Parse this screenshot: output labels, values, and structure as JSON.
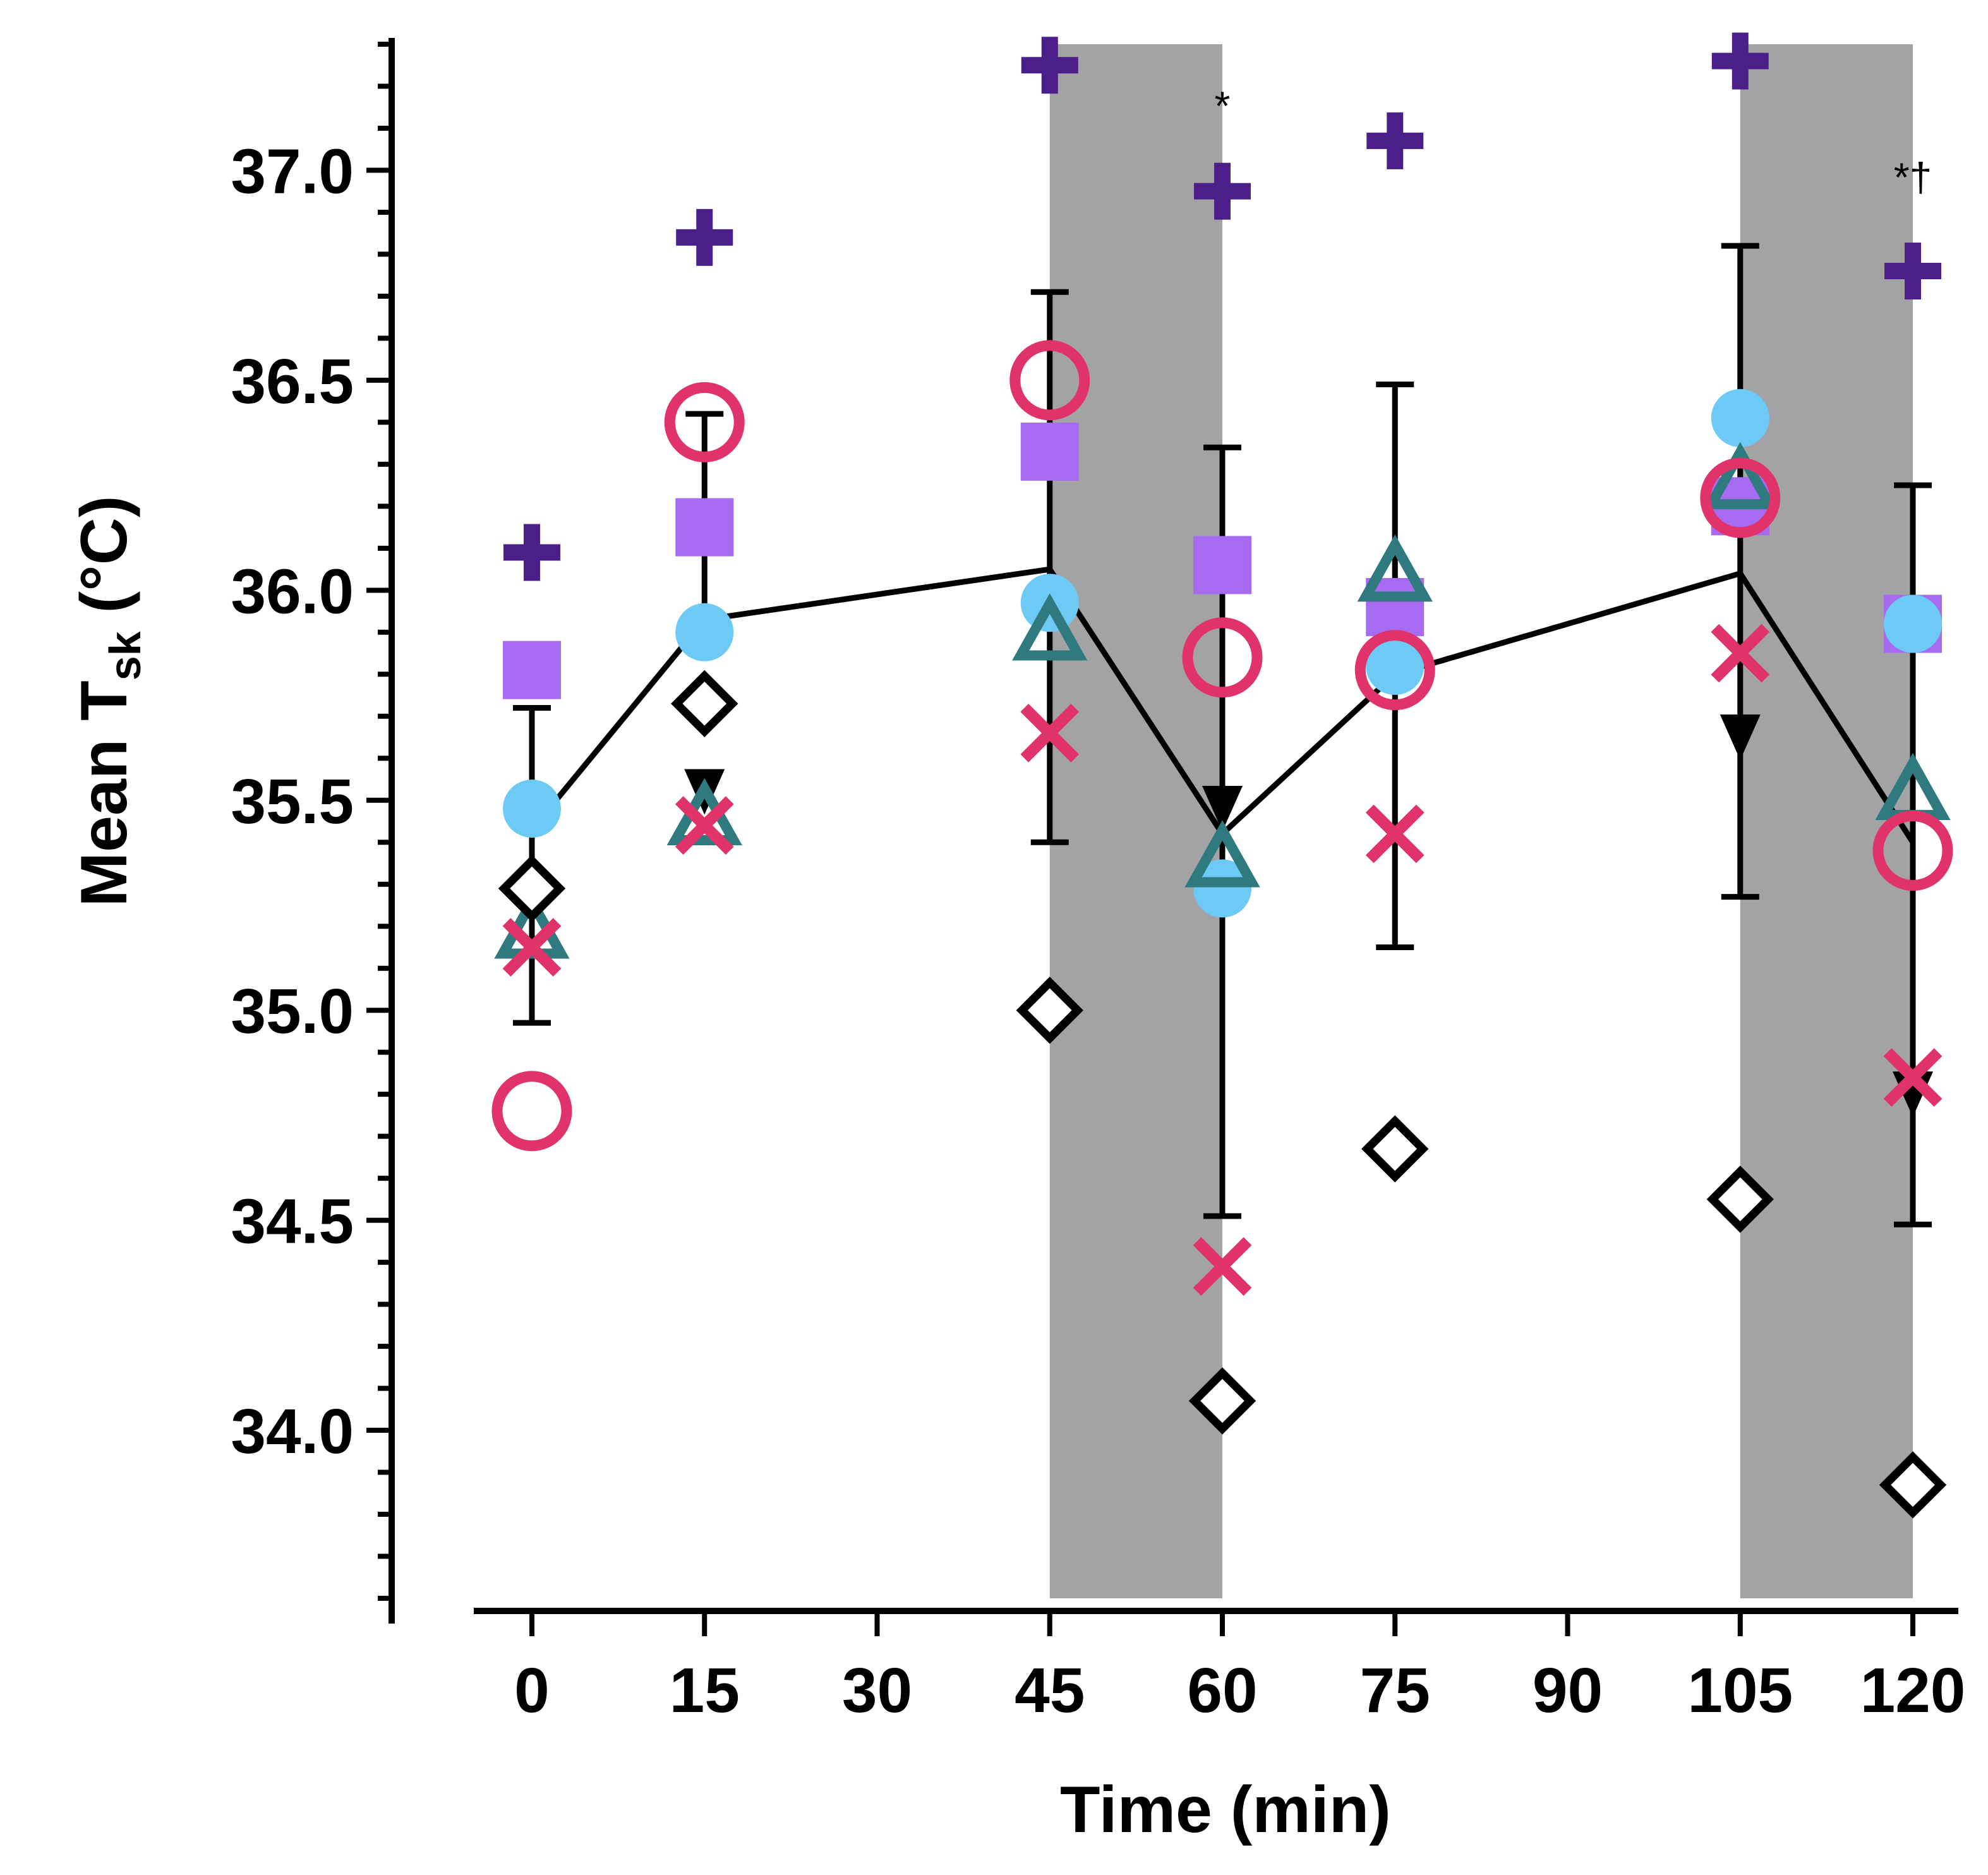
{
  "chart_data": {
    "type": "scatter",
    "title": "",
    "xlabel": "Time (min)",
    "ylabel": {
      "main": "Mean T",
      "sub": "sk",
      "tail": " (°C)"
    },
    "xlim": [
      -4.5,
      124.5
    ],
    "ylim": [
      33.6,
      37.3
    ],
    "x_ticks": [
      0,
      15,
      30,
      45,
      60,
      75,
      90,
      105,
      120
    ],
    "y_ticks": [
      34.0,
      34.5,
      35.0,
      35.5,
      36.0,
      36.5,
      37.0
    ],
    "y_minor_step": 0.1,
    "grid": false,
    "shaded_regions": [
      [
        45,
        60
      ],
      [
        105,
        120
      ]
    ],
    "mean_line": {
      "x": [
        0,
        15,
        45,
        60,
        75,
        105,
        120
      ],
      "y": [
        35.43,
        35.93,
        36.05,
        35.42,
        35.8,
        36.04,
        35.4
      ],
      "err_low": [
        34.97,
        null,
        35.4,
        34.51,
        35.15,
        35.27,
        34.49
      ],
      "err_high": [
        35.72,
        36.42,
        36.71,
        36.34,
        36.49,
        36.82,
        36.25
      ]
    },
    "series": [
      {
        "marker": "plus",
        "color": "#4b1f8a",
        "x": [
          0,
          15,
          45,
          60,
          75,
          105,
          120
        ],
        "y": [
          36.09,
          36.84,
          37.25,
          36.95,
          37.07,
          37.26,
          36.76
        ]
      },
      {
        "marker": "square",
        "color": "#a66bf0",
        "x": [
          0,
          15,
          45,
          60,
          75,
          105,
          120
        ],
        "y": [
          35.81,
          36.15,
          36.33,
          36.06,
          35.96,
          36.2,
          35.92
        ]
      },
      {
        "marker": "circle-filled",
        "color": "#6ccaf5",
        "x": [
          0,
          15,
          45,
          60,
          75,
          105,
          120
        ],
        "y": [
          35.48,
          35.9,
          35.97,
          35.29,
          35.82,
          36.41,
          35.92
        ]
      },
      {
        "marker": "circle-open",
        "color": "#e0336a",
        "x": [
          0,
          15,
          45,
          60,
          75,
          105,
          120
        ],
        "y": [
          34.76,
          36.4,
          36.5,
          35.84,
          35.81,
          36.22,
          35.38
        ]
      },
      {
        "marker": "triangle-open",
        "color": "#2e7a7e",
        "x": [
          0,
          15,
          45,
          60,
          75,
          105,
          120
        ],
        "y": [
          35.18,
          35.45,
          35.89,
          35.35,
          36.03,
          36.25,
          35.51
        ]
      },
      {
        "marker": "x",
        "color": "#e0336a",
        "x": [
          0,
          15,
          45,
          60,
          75,
          105,
          120
        ],
        "y": [
          35.15,
          35.44,
          35.66,
          34.39,
          35.42,
          35.85,
          34.84
        ]
      },
      {
        "marker": "diamond-open",
        "color": "#000000",
        "x": [
          0,
          15,
          45,
          60,
          75,
          105,
          120
        ],
        "y": [
          35.29,
          35.73,
          35.0,
          34.07,
          34.67,
          34.55,
          33.87
        ]
      },
      {
        "marker": "triangle-down",
        "color": "#000000",
        "x": [
          15,
          60,
          105,
          120
        ],
        "y": [
          35.52,
          35.48,
          35.65,
          34.8
        ]
      }
    ],
    "annotations": [
      {
        "text": "*",
        "x": 60,
        "y": 37.12
      },
      {
        "text": "*†",
        "x": 120,
        "y": 36.95
      }
    ]
  }
}
